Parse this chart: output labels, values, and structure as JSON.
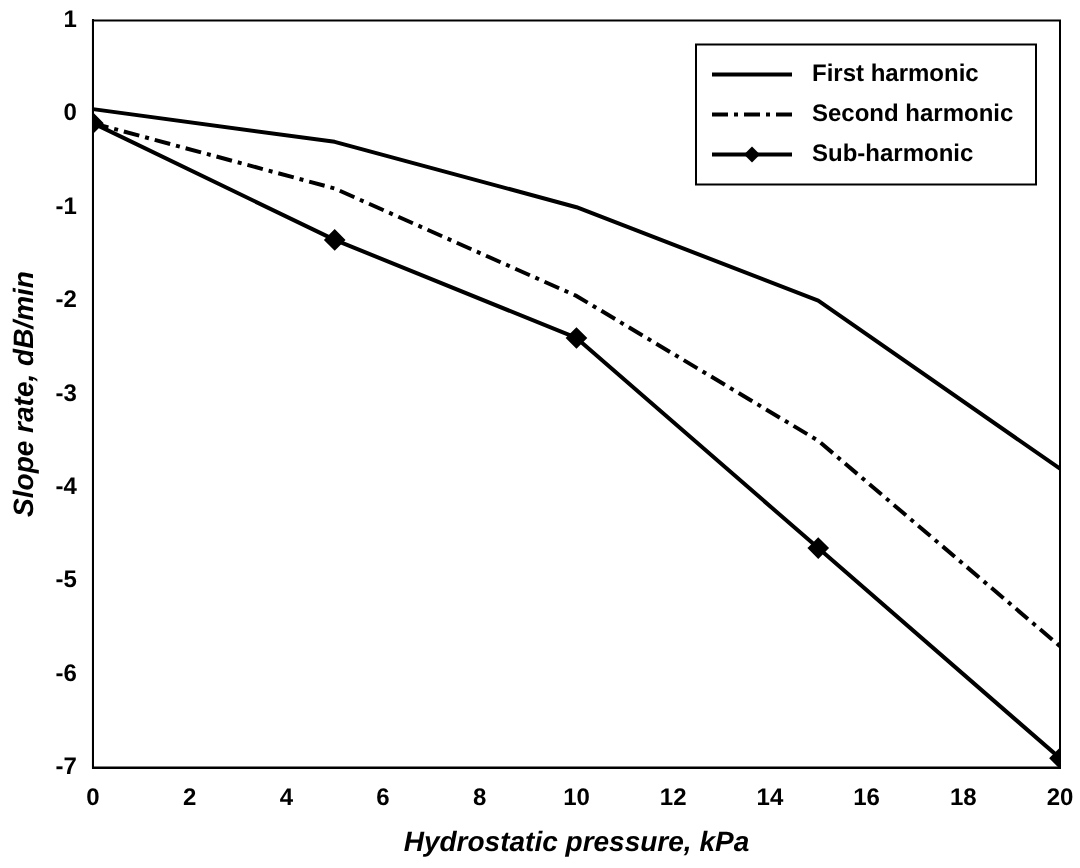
{
  "chart_data": {
    "type": "line",
    "xlabel": "Hydrostatic pressure, kPa",
    "ylabel": "Slope rate, dB/min",
    "x": [
      0,
      5,
      10,
      15,
      20
    ],
    "series": [
      {
        "name": "First harmonic",
        "color": "#000000",
        "values": [
          0.05,
          -0.3,
          -1.0,
          -2.0,
          -3.8
        ],
        "line_style": "solid",
        "marker": "none"
      },
      {
        "name": "Second harmonic",
        "color": "#000000",
        "values": [
          -0.1,
          -0.8,
          -1.95,
          -3.5,
          -5.7
        ],
        "line_style": "dashed",
        "marker": "none"
      },
      {
        "name": "Sub-harmonic",
        "color": "#000000",
        "values": [
          -0.1,
          -1.35,
          -2.4,
          -4.65,
          -6.9
        ],
        "line_style": "solid",
        "marker": "diamond"
      }
    ],
    "xlim": [
      0,
      20
    ],
    "xticks": [
      0,
      2,
      4,
      6,
      8,
      10,
      12,
      14,
      16,
      18,
      20
    ],
    "ylim": [
      -7,
      1
    ],
    "yticks": [
      -7,
      -6,
      -5,
      -4,
      -3,
      -2,
      -1,
      0,
      1
    ],
    "grid": false,
    "legend": "top right"
  }
}
